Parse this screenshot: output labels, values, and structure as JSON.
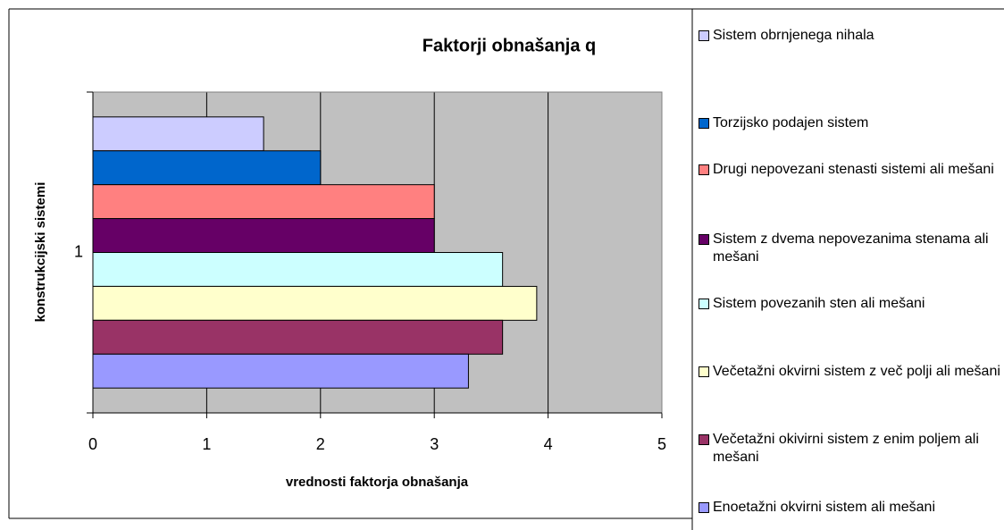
{
  "chart_data": {
    "type": "bar",
    "orientation": "horizontal",
    "title": "Faktorji obnašanja q",
    "x_label": "vrednosti faktorja obnašanja",
    "y_label": "konstrukcijski sistemi",
    "categories": [
      "1"
    ],
    "xlim": [
      0,
      5
    ],
    "xticks": [
      0,
      1,
      2,
      3,
      4,
      5
    ],
    "grid": true,
    "legend": "right",
    "series": [
      {
        "name": "Sistem obrnjenega nihala",
        "color": "#ccccff",
        "values": [
          1.5
        ]
      },
      {
        "name": "Torzijsko podajen sistem",
        "color": "#0066cc",
        "values": [
          2
        ]
      },
      {
        "name": "Drugi nepovezani stenasti sistemi ali mešani",
        "color": "#ff8080",
        "values": [
          3
        ]
      },
      {
        "name": "Sistem z dvema nepovezanima stenama ali mešani",
        "color": "#660066",
        "values": [
          3
        ]
      },
      {
        "name": "Sistem povezanih sten ali mešani",
        "color": "#ccffff",
        "values": [
          3.6
        ]
      },
      {
        "name": "Večetažni okvirni sistem z več polji ali mešani",
        "color": "#ffffcc",
        "values": [
          3.9
        ]
      },
      {
        "name": "Večetažni okivirni sistem z enim poljem ali mešani",
        "color": "#993366",
        "values": [
          3.6
        ]
      },
      {
        "name": "Enoetažni okvirni sistem ali mešani",
        "color": "#9999ff",
        "values": [
          3.3
        ]
      }
    ]
  }
}
